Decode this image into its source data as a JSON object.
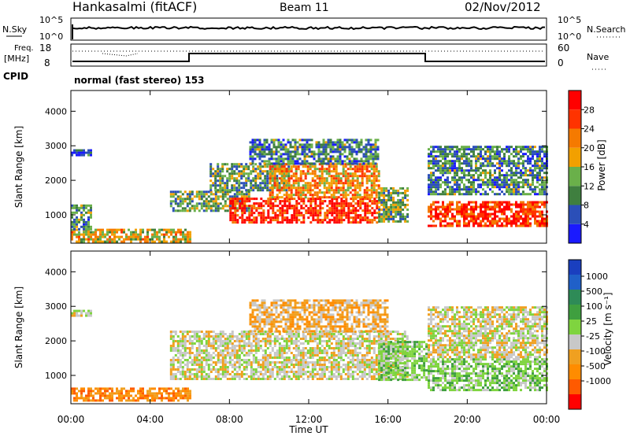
{
  "header": {
    "title": "Hankasalmi (fitACF)",
    "beam": "Beam 11",
    "date": "02/Nov/2012"
  },
  "noise_panel": {
    "left_label": "N.Sky",
    "left_ticks": [
      "10^5",
      "10^0"
    ],
    "right_ticks": [
      "10^5",
      "10^0"
    ],
    "right_label": "N.Search"
  },
  "freq_panel": {
    "left_label_1": "Freq.",
    "left_label_2": "[MHz]",
    "left_ticks": [
      "18",
      "8"
    ],
    "right_ticks": [
      "60",
      "0"
    ],
    "right_label": "Nave",
    "cpid_label": "CPID",
    "mode_text": "normal (fast stereo) 153"
  },
  "colors": {
    "power": [
      "#1a1aff",
      "#2b4fb8",
      "#3f7f3f",
      "#6ab04a",
      "#f2a000",
      "#f57a00",
      "#ff3300",
      "#ff0000"
    ],
    "velocity": [
      "#ff0000",
      "#ff5a00",
      "#ff8c00",
      "#f0a020",
      "#c8c8c8",
      "#7fd43f",
      "#3f9f3f",
      "#2e8b57",
      "#2060c8",
      "#1a3fbf"
    ]
  },
  "chart_data": [
    {
      "type": "heatmap",
      "title": "",
      "xlabel": "Time UT",
      "ylabel": "Slant Range [km]",
      "x_ticks": [
        "00:00",
        "04:00",
        "08:00",
        "12:00",
        "16:00",
        "20:00",
        "00:00"
      ],
      "x_range_hours": [
        0,
        24
      ],
      "y_ticks": [
        "1000",
        "2000",
        "3000",
        "4000"
      ],
      "y_range_km": [
        180,
        4600
      ],
      "colorbar_label": "Power [dB]",
      "colorbar_ticks": [
        "4",
        "8",
        "12",
        "16",
        "20",
        "24",
        "28"
      ],
      "colorbar_range": [
        0,
        32
      ],
      "regions": [
        {
          "t0": 0.0,
          "t1": 6.0,
          "r0": 250,
          "r1": 600,
          "level": 0.55
        },
        {
          "t0": 0.0,
          "t1": 1.0,
          "r0": 600,
          "r1": 1300,
          "level": 0.3
        },
        {
          "t0": 0.0,
          "t1": 1.0,
          "r0": 2700,
          "r1": 2900,
          "level": 0.2
        },
        {
          "t0": 5.0,
          "t1": 9.0,
          "r0": 1100,
          "r1": 1700,
          "level": 0.4
        },
        {
          "t0": 7.0,
          "t1": 11.0,
          "r0": 1700,
          "r1": 2500,
          "level": 0.35
        },
        {
          "t0": 8.0,
          "t1": 15.5,
          "r0": 800,
          "r1": 1500,
          "level": 0.85
        },
        {
          "t0": 10.0,
          "t1": 15.5,
          "r0": 1500,
          "r1": 2500,
          "level": 0.65
        },
        {
          "t0": 9.0,
          "t1": 15.5,
          "r0": 2500,
          "r1": 3200,
          "level": 0.3
        },
        {
          "t0": 15.5,
          "t1": 17.0,
          "r0": 800,
          "r1": 1800,
          "level": 0.4
        },
        {
          "t0": 18.0,
          "t1": 24.0,
          "r0": 700,
          "r1": 1400,
          "level": 0.85
        },
        {
          "t0": 18.0,
          "t1": 24.0,
          "r0": 1600,
          "r1": 3000,
          "level": 0.3
        }
      ]
    },
    {
      "type": "heatmap",
      "title": "",
      "xlabel": "Time UT",
      "ylabel": "Slant Range [km]",
      "x_ticks": [
        "00:00",
        "04:00",
        "08:00",
        "12:00",
        "16:00",
        "20:00",
        "00:00"
      ],
      "x_range_hours": [
        0,
        24
      ],
      "y_ticks": [
        "1000",
        "2000",
        "3000",
        "4000"
      ],
      "y_range_km": [
        180,
        4600
      ],
      "colorbar_label": "Velocity [m s⁻¹]",
      "colorbar_ticks": [
        "1000",
        "500",
        "100",
        "25",
        "-25",
        "-100",
        "-500",
        "-1000"
      ],
      "regions": [
        {
          "t0": 0.0,
          "t1": 6.0,
          "r0": 250,
          "r1": 650,
          "cat": 2
        },
        {
          "t0": 0.0,
          "t1": 1.0,
          "r0": 2700,
          "r1": 2900,
          "cat": 4
        },
        {
          "t0": 5.0,
          "t1": 17.0,
          "r0": 900,
          "r1": 2300,
          "cat": 4
        },
        {
          "t0": 9.0,
          "t1": 16.0,
          "r0": 2300,
          "r1": 3200,
          "cat": 3
        },
        {
          "t0": 15.5,
          "t1": 18.0,
          "r0": 900,
          "r1": 2000,
          "cat": 5
        },
        {
          "t0": 18.0,
          "t1": 24.0,
          "r0": 600,
          "r1": 1500,
          "cat": 5
        },
        {
          "t0": 18.0,
          "t1": 24.0,
          "r0": 1500,
          "r1": 3000,
          "cat": 4
        }
      ]
    }
  ]
}
